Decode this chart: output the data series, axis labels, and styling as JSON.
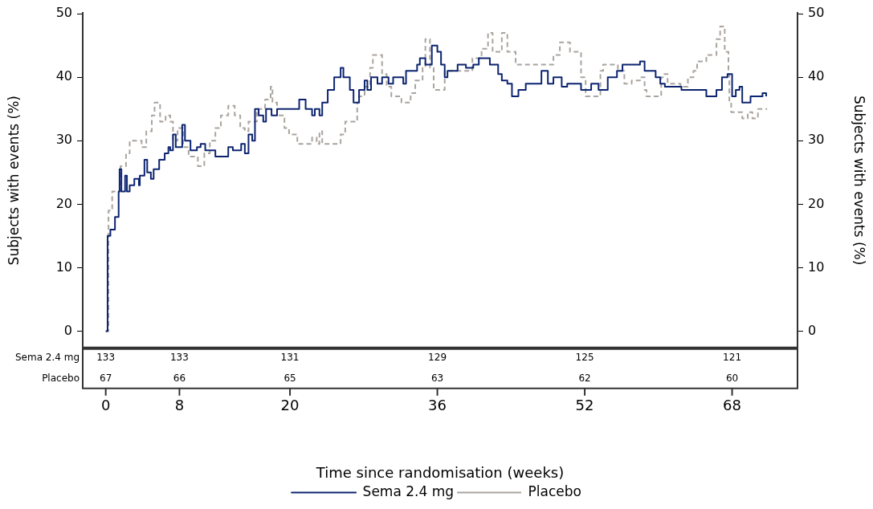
{
  "chart_data": {
    "type": "step",
    "xlabel": "Time since randomisation (weeks)",
    "ylabel": "Subjects with events (%)",
    "y2label": "Subjects with events (%)",
    "xlim": [
      -2.5,
      75.1
    ],
    "xticks": [
      0,
      8,
      20,
      36,
      52,
      68
    ],
    "ylim": [
      -2.7,
      50.2
    ],
    "yticks": [
      0,
      10,
      20,
      30,
      40,
      50
    ],
    "y2lim": [
      -2.7,
      50.2
    ],
    "y2ticks": [
      0,
      10,
      20,
      30,
      40,
      50
    ],
    "grid": false,
    "legend": "bottom",
    "marker": "none",
    "series": [
      {
        "name": "Sema 2.4 mg",
        "color": "#0c2470",
        "line_style": "solid",
        "x": [
          0,
          0.2,
          0.5,
          1,
          1.4,
          1.5,
          1.7,
          2.1,
          2.3,
          2.6,
          3.1,
          3.6,
          3.7,
          4.2,
          4.5,
          4.9,
          5.2,
          5.8,
          6.4,
          6.8,
          7,
          7.3,
          7.6,
          8.3,
          8.6,
          9.2,
          9.9,
          10.3,
          10.8,
          11.6,
          11.9,
          13.3,
          13.8,
          14.7,
          15.1,
          15.5,
          15.9,
          16.2,
          16.6,
          17.1,
          17.4,
          18,
          18.6,
          21,
          21.7,
          22.4,
          22.7,
          23.2,
          23.5,
          24.1,
          24.8,
          25.5,
          25.8,
          26.5,
          26.9,
          27.5,
          28.1,
          28.4,
          28.8,
          29.5,
          30,
          30.7,
          31.2,
          32.1,
          32.3,
          32.6,
          33.8,
          34.1,
          34.7,
          35.4,
          36,
          36.4,
          36.8,
          37.1,
          38.2,
          39.1,
          39.9,
          40.5,
          41.7,
          42.6,
          43,
          43.6,
          44.1,
          44.8,
          45.6,
          47.3,
          48,
          48.6,
          49.5,
          50.1,
          51.6,
          52.7,
          53.5,
          54.5,
          55.5,
          56.1,
          58,
          58.5,
          59.7,
          60.2,
          60.7,
          62.5,
          64.5,
          65.2,
          66.3,
          66.9,
          67.5,
          68,
          68.4,
          68.8,
          69.1,
          70,
          71.3,
          71.7
        ],
        "values": [
          0,
          15,
          16,
          18,
          22,
          25.5,
          22,
          24.5,
          22,
          23,
          24,
          23,
          24.5,
          27,
          25,
          24,
          25.5,
          27,
          28,
          29,
          28.5,
          31,
          29,
          32.5,
          30,
          28.5,
          29,
          29.5,
          28.5,
          28.5,
          27.5,
          29,
          28.5,
          29.5,
          28,
          31,
          30,
          35,
          34,
          33,
          35,
          34,
          35,
          36.5,
          35,
          34,
          35,
          34,
          36,
          38,
          40,
          41.5,
          40,
          38,
          36,
          38,
          39.5,
          38,
          40,
          39,
          40,
          39,
          40,
          40,
          39,
          41,
          42,
          43,
          42,
          45,
          44,
          42,
          40,
          41,
          42,
          41.5,
          42,
          43,
          42,
          40.5,
          39.5,
          39,
          37,
          38,
          39,
          41,
          39,
          40,
          38.5,
          39,
          38,
          39,
          38,
          40,
          41,
          42,
          42.5,
          41,
          40,
          39,
          38.5,
          38,
          38,
          37,
          38,
          40,
          40.5,
          37,
          38,
          38.5,
          36,
          37,
          37.5,
          37
        ]
      },
      {
        "name": "Placebo",
        "color": "#aaa49e",
        "line_style": "dashed",
        "x": [
          0,
          0.3,
          0.7,
          1.6,
          2.2,
          2.6,
          3.9,
          4.4,
          5,
          5.3,
          5.9,
          6.5,
          7,
          7.3,
          7.8,
          8.4,
          9,
          10,
          10.7,
          11.3,
          11.9,
          12.5,
          13.3,
          14,
          14.6,
          15.1,
          15.5,
          16.4,
          17.3,
          17.9,
          18.1,
          18.6,
          19.4,
          19.9,
          20.8,
          22.4,
          22.9,
          23.2,
          23.5,
          25.5,
          26,
          27.3,
          27.5,
          28.1,
          28.7,
          29,
          30,
          30.5,
          31,
          32.1,
          33.1,
          33.6,
          34.4,
          34.7,
          35.2,
          35.6,
          36.8,
          39.8,
          40.8,
          41.5,
          42,
          43,
          43.6,
          44.5,
          48.6,
          49.3,
          50.4,
          51.6,
          52.1,
          53.7,
          54,
          55.6,
          56.3,
          57.1,
          58,
          58.5,
          58.7,
          60.3,
          60.5,
          61,
          62.4,
          63.2,
          63.8,
          64.2,
          65.2,
          66.3,
          66.7,
          67.2,
          67.6,
          67.7,
          67.9,
          69.1,
          69.7,
          70.2,
          70.8,
          71.8
        ],
        "values": [
          0,
          19,
          22,
          26,
          28,
          30,
          29,
          31.5,
          34,
          36,
          33,
          34,
          33,
          30,
          32,
          29,
          27.5,
          26,
          28,
          30,
          32,
          34,
          35.5,
          34,
          32,
          31.5,
          33,
          35,
          36.5,
          38.5,
          36,
          34,
          32,
          31,
          29.5,
          30.5,
          29.5,
          31.5,
          29.5,
          31,
          33,
          36,
          37,
          38.5,
          41.5,
          43.5,
          40.5,
          38.5,
          37,
          36,
          37.5,
          39.5,
          41.5,
          46,
          41.5,
          38,
          41,
          43,
          44.5,
          47,
          44,
          47,
          44,
          42,
          43.5,
          45.5,
          44,
          40,
          37,
          41,
          42,
          41,
          39,
          39.5,
          40,
          38,
          37,
          40,
          40.5,
          39,
          38.5,
          40,
          41,
          42.5,
          43.5,
          46,
          48,
          44,
          40.5,
          36,
          34.5,
          33.5,
          34.5,
          33.5,
          35,
          35
        ]
      }
    ],
    "annotations": [
      "Sema 2.4 mg",
      "133",
      "133",
      "131",
      "129",
      "125",
      "121",
      "Placebo",
      "67",
      "66",
      "65",
      "63",
      "62",
      "60"
    ]
  }
}
